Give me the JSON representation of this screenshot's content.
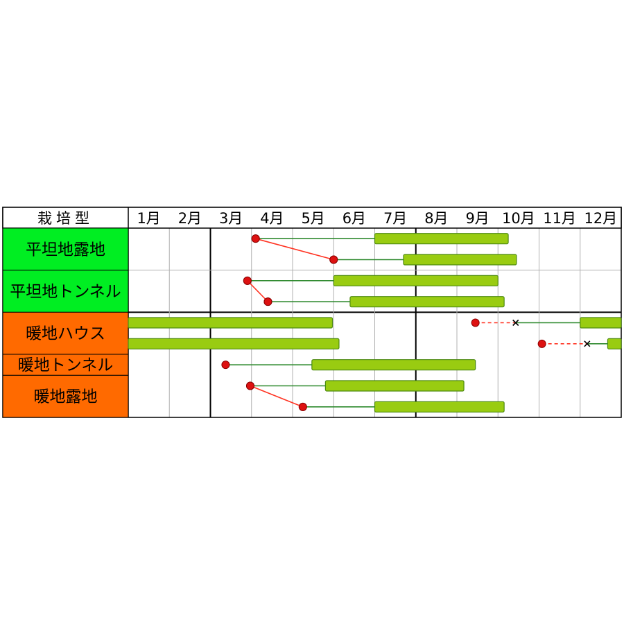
{
  "chart_data": {
    "type": "gantt",
    "header_label": "栽培型",
    "months": [
      "1月",
      "2月",
      "3月",
      "4月",
      "5月",
      "6月",
      "7月",
      "8月",
      "9月",
      "10月",
      "11月",
      "12月"
    ],
    "groups": [
      {
        "label": "平坦地露地",
        "color": "#00ee22",
        "rows": 2
      },
      {
        "label": "平坦地トンネル",
        "color": "#00ee22",
        "rows": 2
      },
      {
        "label": "暖地ハウス",
        "color": "#ff6a00",
        "rows": 2
      },
      {
        "label": "暖地トンネル",
        "color": "#ff6a00",
        "rows": 1
      },
      {
        "label": "暖地露地",
        "color": "#ff6a00",
        "rows": 2
      }
    ],
    "rows": [
      {
        "group": "平坦地露地",
        "sow": 4.1,
        "sow_to_row": 0,
        "plant": 7.0,
        "harvest": [
          [
            7.0,
            10.25
          ]
        ]
      },
      {
        "group": "平坦地露地",
        "sow": 6.0,
        "plant": 7.7,
        "harvest": [
          [
            7.7,
            10.45
          ]
        ]
      },
      {
        "group": "平坦地トンネル",
        "sow": 3.9,
        "sow_to_row": 0,
        "plant": 6.0,
        "harvest": [
          [
            6.0,
            10.0
          ]
        ]
      },
      {
        "group": "平坦地トンネル",
        "sow": 4.4,
        "plant": 6.4,
        "harvest": [
          [
            6.4,
            10.15
          ]
        ]
      },
      {
        "group": "暖地ハウス",
        "harvest": [
          [
            1.0,
            5.97
          ],
          [
            12.0,
            13.0
          ]
        ],
        "sow": 9.45,
        "plant_x": 10.43,
        "plant_to": 12.0
      },
      {
        "group": "暖地ハウス",
        "harvest": [
          [
            1.0,
            6.13
          ],
          [
            12.67,
            13.0
          ]
        ],
        "sow": 11.07,
        "plant_x": 12.17,
        "plant_to": 12.67
      },
      {
        "group": "暖地トンネル",
        "sow": 3.37,
        "plant": 5.47,
        "harvest": [
          [
            5.47,
            9.45
          ]
        ]
      },
      {
        "group": "暖地露地",
        "sow": 3.97,
        "sow_to_row": 0,
        "plant": 5.8,
        "harvest": [
          [
            5.8,
            9.17
          ]
        ]
      },
      {
        "group": "暖地露地",
        "sow": 5.25,
        "plant": 7.0,
        "harvest": [
          [
            7.0,
            10.15
          ]
        ]
      }
    ],
    "colors": {
      "harvest_fill": "#99cc11",
      "harvest_stroke": "#4d8a10",
      "grow_line": "#2f8a2f",
      "sow_marker": "#dd1111",
      "sow_link": "#ff3322",
      "grid": "#b0b0b0",
      "grid_bold": "#000000"
    }
  }
}
